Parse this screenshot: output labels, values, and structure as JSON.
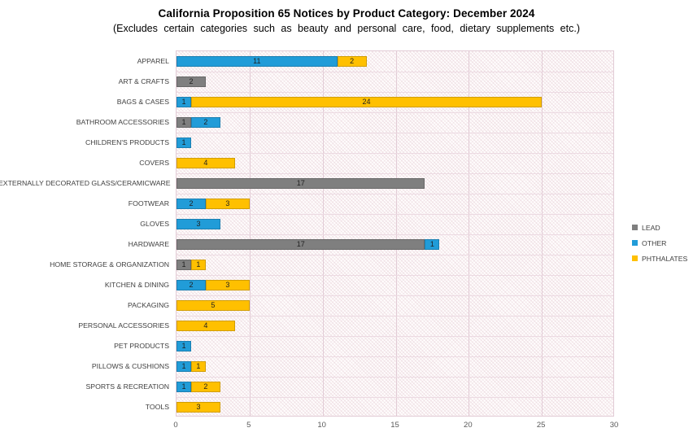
{
  "header": {
    "title": "California Proposition 65 Notices by Product Category: December 2024",
    "subtitle": "(Excludes certain categories such as beauty and personal care, food, dietary supplements etc.)"
  },
  "chart_data": {
    "type": "bar",
    "orientation": "horizontal",
    "stacked": true,
    "title": "California Proposition 65 Notices by Product Category: December 2024",
    "subtitle": "(Excludes certain categories such as beauty and personal care, food, dietary supplements etc.)",
    "categories": [
      "APPAREL",
      "ART & CRAFTS",
      "BAGS & CASES",
      "BATHROOM ACCESSORIES",
      "CHILDREN'S PRODUCTS",
      "COVERS",
      "EXTERNALLY DECORATED GLASS/CERAMICWARE",
      "FOOTWEAR",
      "GLOVES",
      "HARDWARE",
      "HOME STORAGE & ORGANIZATION",
      "KITCHEN & DINING",
      "PACKAGING",
      "PERSONAL ACCESSORIES",
      "PET PRODUCTS",
      "PILLOWS & CUSHIONS",
      "SPORTS & RECREATION",
      "TOOLS"
    ],
    "series": [
      {
        "name": "LEAD",
        "color": "#7F7F7F",
        "values": [
          0,
          2,
          0,
          1,
          0,
          0,
          17,
          0,
          0,
          17,
          1,
          0,
          0,
          0,
          0,
          0,
          0,
          0
        ]
      },
      {
        "name": "OTHER",
        "color": "#219CD8",
        "values": [
          11,
          0,
          1,
          2,
          1,
          0,
          0,
          2,
          3,
          1,
          0,
          2,
          0,
          0,
          1,
          1,
          1,
          0
        ]
      },
      {
        "name": "PHTHALATES",
        "color": "#FFC000",
        "values": [
          2,
          0,
          24,
          0,
          0,
          4,
          0,
          3,
          0,
          0,
          1,
          3,
          5,
          4,
          0,
          1,
          2,
          3
        ]
      }
    ],
    "x_ticks": [
      0,
      5,
      10,
      15,
      20,
      25,
      30
    ],
    "xlim": [
      0,
      30
    ],
    "xlabel": "",
    "ylabel": "",
    "grid": "vertical",
    "legend_position": "right",
    "show_segment_value_labels": true
  },
  "colors": {
    "lead": "#7F7F7F",
    "other": "#219CD8",
    "phthalates": "#FFC000",
    "gridline": "#e2ccd6",
    "plot_hatch": "#cea2b0",
    "value_label": "#1f1f1f",
    "category_label": "#3f3f3f",
    "axis_label": "#595959"
  }
}
